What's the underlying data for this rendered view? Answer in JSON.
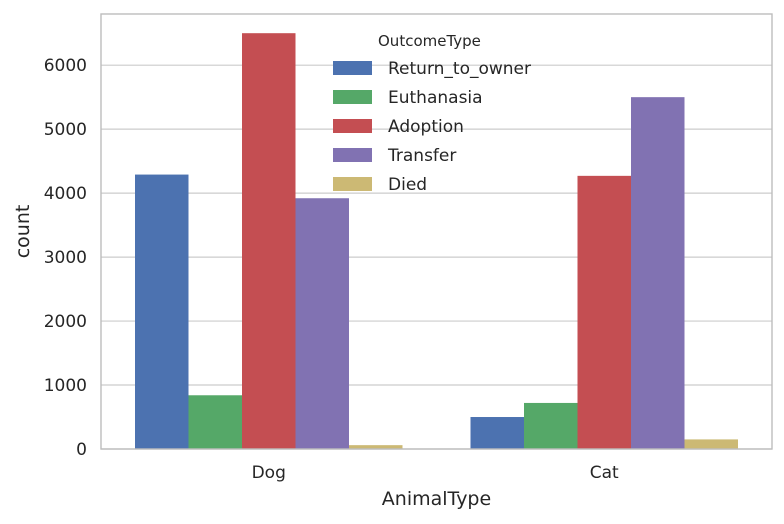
{
  "chart_data": {
    "type": "bar",
    "xlabel": "AnimalType",
    "ylabel": "count",
    "categories": [
      "Dog",
      "Cat"
    ],
    "ylim": [
      0,
      6800
    ],
    "yticks": [
      0,
      1000,
      2000,
      3000,
      4000,
      5000,
      6000
    ],
    "grid": true,
    "legend": {
      "title": "OutcomeType",
      "placement": "top-center"
    },
    "series": [
      {
        "name": "Return_to_owner",
        "color": "#4c72b0",
        "values": [
          4290,
          500
        ]
      },
      {
        "name": "Euthanasia",
        "color": "#55a868",
        "values": [
          840,
          720
        ]
      },
      {
        "name": "Adoption",
        "color": "#c44e52",
        "values": [
          6500,
          4270
        ]
      },
      {
        "name": "Transfer",
        "color": "#8172b2",
        "values": [
          3920,
          5500
        ]
      },
      {
        "name": "Died",
        "color": "#ccb974",
        "values": [
          60,
          150
        ]
      }
    ]
  }
}
